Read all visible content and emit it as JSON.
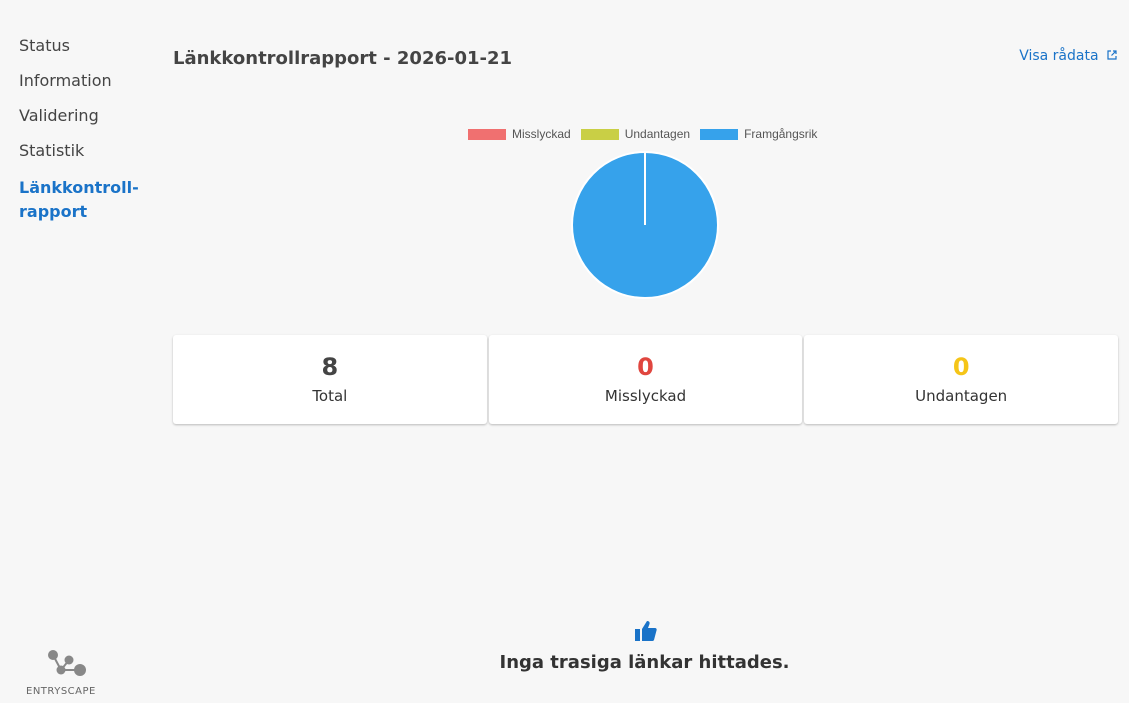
{
  "sidebar": {
    "items": [
      {
        "label": "Status"
      },
      {
        "label": "Information"
      },
      {
        "label": "Validering"
      },
      {
        "label": "Statistik"
      },
      {
        "label": "Länkkontroll-rapport",
        "active": true
      }
    ]
  },
  "header": {
    "title": "Länkkontrollrapport - 2026-01-21",
    "raw_link": "Visa rådata",
    "raw_icon": "external-link-icon"
  },
  "chart_data": {
    "type": "pie",
    "categories": [
      "Misslyckad",
      "Undantagen",
      "Framgångsrik"
    ],
    "values": [
      0,
      0,
      8
    ],
    "colors": [
      "#f07070",
      "#c9cf45",
      "#36a2eb"
    ],
    "legend": "top"
  },
  "cards": [
    {
      "value": "8",
      "label": "Total",
      "color": "#444444"
    },
    {
      "value": "0",
      "label": "Misslyckad",
      "color": "#e0463f"
    },
    {
      "value": "0",
      "label": "Undantagen",
      "color": "#f5c518"
    }
  ],
  "result": {
    "icon": "thumbs-up-icon",
    "message": "Inga trasiga länkar hittades."
  },
  "logo": {
    "text": "ENTRYSCAPE"
  }
}
